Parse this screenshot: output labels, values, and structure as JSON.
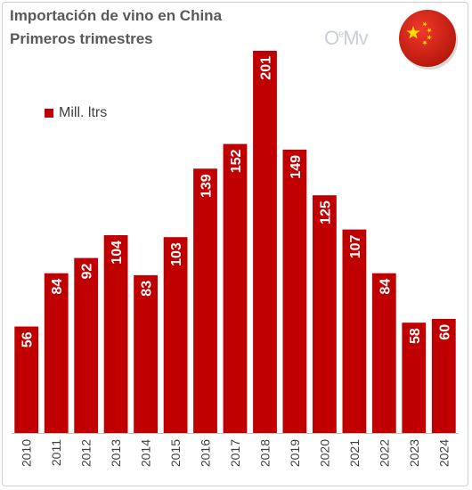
{
  "chart_data": {
    "type": "bar",
    "title": "Importación de vino en China",
    "subtitle": "Primeros trimestres",
    "categories": [
      "2010",
      "2011",
      "2012",
      "2013",
      "2014",
      "2015",
      "2016",
      "2017",
      "2018",
      "2019",
      "2020",
      "2021",
      "2022",
      "2023",
      "2024"
    ],
    "series": [
      {
        "name": "Mill. ltrs",
        "values": [
          56,
          84,
          92,
          104,
          83,
          103,
          139,
          152,
          201,
          149,
          125,
          107,
          84,
          58,
          60
        ],
        "color": "#c00000"
      }
    ],
    "ylim": [
      0,
      210
    ],
    "grid": false,
    "legend_position": "top-left",
    "data_labels": true,
    "label_color": "#ffffff",
    "axis_color": "#bfbfbf",
    "tick_label_color": "#404040"
  },
  "brand": {
    "logo_text": "OeMv",
    "logo_color": "#c9ced8",
    "flag_icon": "china-flag-icon",
    "flag_red": "#de2910",
    "flag_yellow": "#ffde00"
  }
}
